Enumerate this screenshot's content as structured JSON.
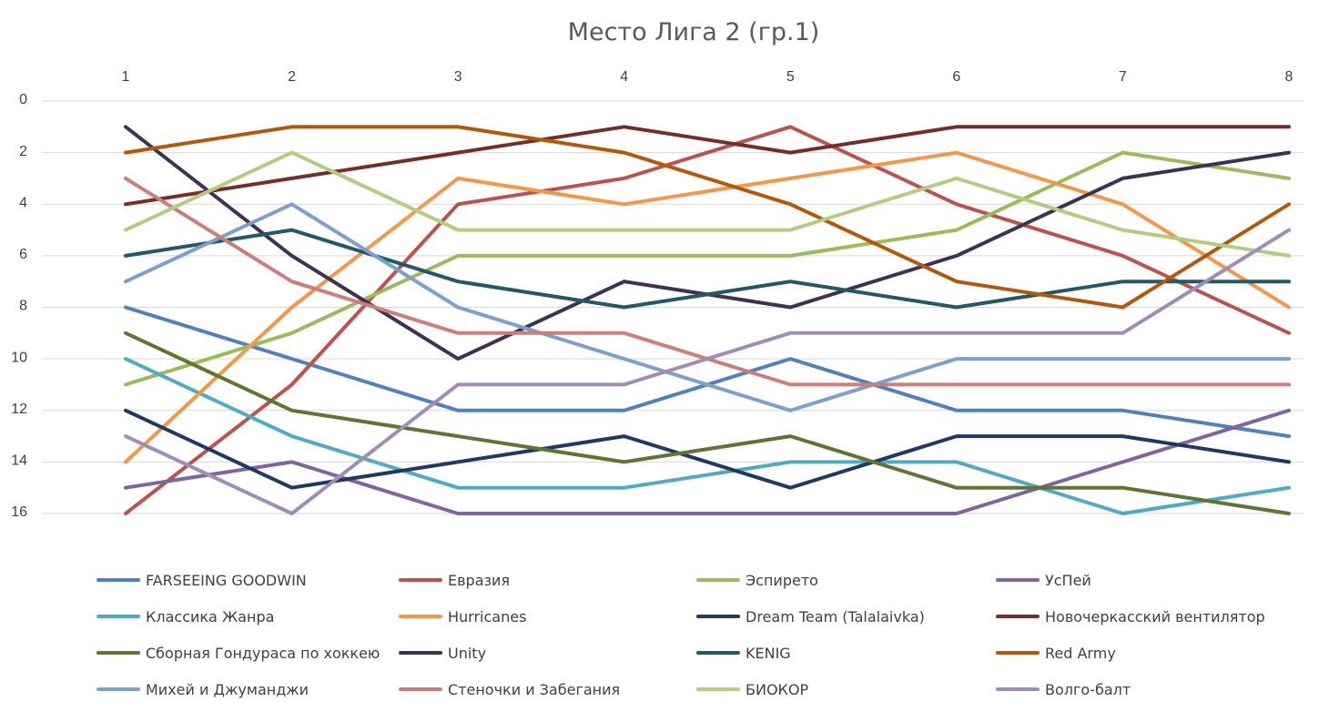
{
  "chart_data": {
    "type": "line",
    "title": "Место Лига 2 (гр.1)",
    "x": [
      "1",
      "2",
      "3",
      "4",
      "5",
      "6",
      "7",
      "8"
    ],
    "x_axis_position": "top",
    "y_ticks": [
      "0",
      "2",
      "4",
      "6",
      "8",
      "10",
      "12",
      "14",
      "16"
    ],
    "ylim": [
      0,
      16
    ],
    "y_reversed": true,
    "grid": true,
    "legend_position": "bottom",
    "series": [
      {
        "name": "FARSEEING GOODWIN",
        "color": "#4f81bd",
        "values": [
          8,
          10,
          12,
          12,
          10,
          12,
          12,
          13
        ]
      },
      {
        "name": "Евразия",
        "color": "#c0504d",
        "values": [
          16,
          11,
          4,
          3,
          1,
          4,
          6,
          9
        ]
      },
      {
        "name": "Эспирето",
        "color": "#9bbb59",
        "values": [
          11,
          9,
          6,
          6,
          6,
          5,
          2,
          3
        ]
      },
      {
        "name": "УсПей",
        "color": "#8064a2",
        "values": [
          15,
          14,
          16,
          16,
          16,
          16,
          14,
          12
        ]
      },
      {
        "name": "Классика Жанра",
        "color": "#4bacc6",
        "values": [
          10,
          13,
          15,
          15,
          14,
          14,
          16,
          15
        ]
      },
      {
        "name": "Hurricanes",
        "color": "#f79646",
        "values": [
          14,
          8,
          3,
          4,
          3,
          2,
          4,
          8
        ]
      },
      {
        "name": "Dream Team (Talalaivka)",
        "color": "#1f3864",
        "values": [
          12,
          15,
          14,
          13,
          15,
          13,
          13,
          14
        ]
      },
      {
        "name": "Новочеркасский вентилятор",
        "color": "#772c2a",
        "values": [
          4,
          3,
          2,
          1,
          2,
          1,
          1,
          1
        ]
      },
      {
        "name": "Сборная Гондураса по хоккею",
        "color": "#5f7530",
        "values": [
          9,
          12,
          13,
          14,
          13,
          15,
          15,
          16
        ]
      },
      {
        "name": "Unity",
        "color": "#3f3151",
        "values": [
          1,
          6,
          10,
          7,
          8,
          6,
          3,
          2
        ]
      },
      {
        "name": "KENIG",
        "color": "#215967",
        "values": [
          6,
          5,
          7,
          8,
          7,
          8,
          7,
          7
        ]
      },
      {
        "name": "Red Army",
        "color": "#b65708",
        "values": [
          2,
          1,
          1,
          2,
          4,
          7,
          8,
          4
        ]
      },
      {
        "name": "Михей и Джуманджи",
        "color": "#7ba0cd",
        "values": [
          7,
          4,
          8,
          10,
          12,
          10,
          10,
          10
        ]
      },
      {
        "name": "Стеночки и Забегания",
        "color": "#d07c7a",
        "values": [
          3,
          7,
          9,
          9,
          11,
          11,
          11,
          11
        ]
      },
      {
        "name": "БИОКОР",
        "color": "#b3cc80",
        "values": [
          5,
          2,
          5,
          5,
          5,
          3,
          5,
          6
        ]
      },
      {
        "name": "Волго-балт",
        "color": "#a08db7",
        "values": [
          13,
          16,
          11,
          11,
          9,
          9,
          9,
          5
        ]
      }
    ]
  }
}
